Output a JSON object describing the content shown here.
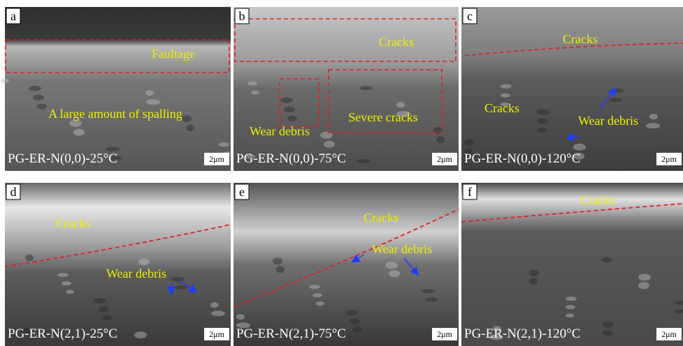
{
  "panels": [
    {
      "letter": "a",
      "caption": "PG-ER-N(0,0)-25°C",
      "scale": "2μm",
      "annotations": [
        "Faultage",
        "A large amount of spalling"
      ]
    },
    {
      "letter": "b",
      "caption": "PG-ER-N(0,0)-75°C",
      "scale": "2μm",
      "annotations": [
        "Cracks",
        "Wear debris",
        "Severe cracks"
      ]
    },
    {
      "letter": "c",
      "caption": "PG-ER-N(0,0)-120°C",
      "scale": "2μm",
      "annotations": [
        "Cracks",
        "Cracks",
        "Wear debris"
      ]
    },
    {
      "letter": "d",
      "caption": "PG-ER-N(2,1)-25°C",
      "scale": "2μm",
      "annotations": [
        "Cracks",
        "Wear debris"
      ]
    },
    {
      "letter": "e",
      "caption": "PG-ER-N(2,1)-75°C",
      "scale": "2μm",
      "annotations": [
        "Cracks",
        "Wear debris"
      ]
    },
    {
      "letter": "f",
      "caption": "PG-ER-N(2,1)-120°C",
      "scale": "2μm",
      "annotations": [
        "Cracks"
      ]
    }
  ]
}
